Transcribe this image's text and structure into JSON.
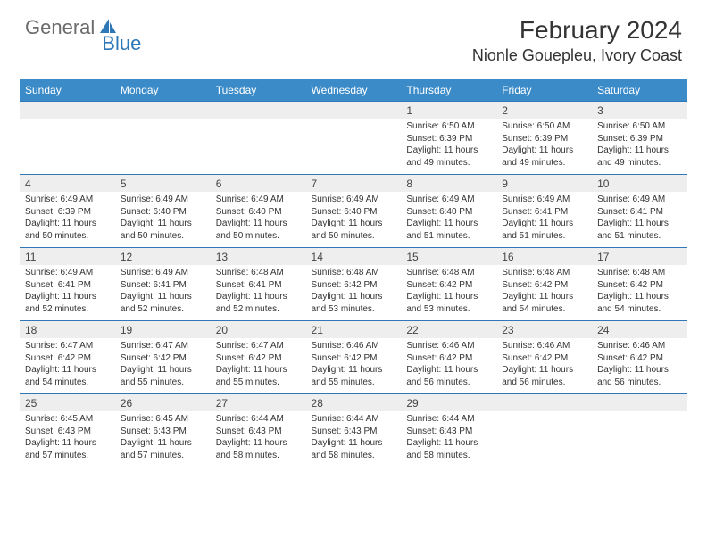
{
  "brand": {
    "general": "General",
    "blue": "Blue"
  },
  "title": {
    "month": "February 2024",
    "location": "Nionle Gouepleu, Ivory Coast"
  },
  "colors": {
    "header_bg": "#3b8bc8",
    "header_text": "#ffffff",
    "daynum_bg": "#eeeeee",
    "border": "#2f78b7",
    "body_text": "#333333",
    "logo_gray": "#6b6b6b",
    "logo_blue": "#2f78b7"
  },
  "typography": {
    "month_title_fontsize": 28,
    "location_fontsize": 18,
    "dayhead_fontsize": 12,
    "daynum_fontsize": 12,
    "cell_fontsize": 10
  },
  "dayheads": [
    "Sunday",
    "Monday",
    "Tuesday",
    "Wednesday",
    "Thursday",
    "Friday",
    "Saturday"
  ],
  "weeks": [
    {
      "nums": [
        "",
        "",
        "",
        "",
        "1",
        "2",
        "3"
      ],
      "cells": [
        null,
        null,
        null,
        null,
        {
          "sunrise": "6:50 AM",
          "sunset": "6:39 PM",
          "daylight": "11 hours and 49 minutes."
        },
        {
          "sunrise": "6:50 AM",
          "sunset": "6:39 PM",
          "daylight": "11 hours and 49 minutes."
        },
        {
          "sunrise": "6:50 AM",
          "sunset": "6:39 PM",
          "daylight": "11 hours and 49 minutes."
        }
      ]
    },
    {
      "nums": [
        "4",
        "5",
        "6",
        "7",
        "8",
        "9",
        "10"
      ],
      "cells": [
        {
          "sunrise": "6:49 AM",
          "sunset": "6:39 PM",
          "daylight": "11 hours and 50 minutes."
        },
        {
          "sunrise": "6:49 AM",
          "sunset": "6:40 PM",
          "daylight": "11 hours and 50 minutes."
        },
        {
          "sunrise": "6:49 AM",
          "sunset": "6:40 PM",
          "daylight": "11 hours and 50 minutes."
        },
        {
          "sunrise": "6:49 AM",
          "sunset": "6:40 PM",
          "daylight": "11 hours and 50 minutes."
        },
        {
          "sunrise": "6:49 AM",
          "sunset": "6:40 PM",
          "daylight": "11 hours and 51 minutes."
        },
        {
          "sunrise": "6:49 AM",
          "sunset": "6:41 PM",
          "daylight": "11 hours and 51 minutes."
        },
        {
          "sunrise": "6:49 AM",
          "sunset": "6:41 PM",
          "daylight": "11 hours and 51 minutes."
        }
      ]
    },
    {
      "nums": [
        "11",
        "12",
        "13",
        "14",
        "15",
        "16",
        "17"
      ],
      "cells": [
        {
          "sunrise": "6:49 AM",
          "sunset": "6:41 PM",
          "daylight": "11 hours and 52 minutes."
        },
        {
          "sunrise": "6:49 AM",
          "sunset": "6:41 PM",
          "daylight": "11 hours and 52 minutes."
        },
        {
          "sunrise": "6:48 AM",
          "sunset": "6:41 PM",
          "daylight": "11 hours and 52 minutes."
        },
        {
          "sunrise": "6:48 AM",
          "sunset": "6:42 PM",
          "daylight": "11 hours and 53 minutes."
        },
        {
          "sunrise": "6:48 AM",
          "sunset": "6:42 PM",
          "daylight": "11 hours and 53 minutes."
        },
        {
          "sunrise": "6:48 AM",
          "sunset": "6:42 PM",
          "daylight": "11 hours and 54 minutes."
        },
        {
          "sunrise": "6:48 AM",
          "sunset": "6:42 PM",
          "daylight": "11 hours and 54 minutes."
        }
      ]
    },
    {
      "nums": [
        "18",
        "19",
        "20",
        "21",
        "22",
        "23",
        "24"
      ],
      "cells": [
        {
          "sunrise": "6:47 AM",
          "sunset": "6:42 PM",
          "daylight": "11 hours and 54 minutes."
        },
        {
          "sunrise": "6:47 AM",
          "sunset": "6:42 PM",
          "daylight": "11 hours and 55 minutes."
        },
        {
          "sunrise": "6:47 AM",
          "sunset": "6:42 PM",
          "daylight": "11 hours and 55 minutes."
        },
        {
          "sunrise": "6:46 AM",
          "sunset": "6:42 PM",
          "daylight": "11 hours and 55 minutes."
        },
        {
          "sunrise": "6:46 AM",
          "sunset": "6:42 PM",
          "daylight": "11 hours and 56 minutes."
        },
        {
          "sunrise": "6:46 AM",
          "sunset": "6:42 PM",
          "daylight": "11 hours and 56 minutes."
        },
        {
          "sunrise": "6:46 AM",
          "sunset": "6:42 PM",
          "daylight": "11 hours and 56 minutes."
        }
      ]
    },
    {
      "nums": [
        "25",
        "26",
        "27",
        "28",
        "29",
        "",
        ""
      ],
      "cells": [
        {
          "sunrise": "6:45 AM",
          "sunset": "6:43 PM",
          "daylight": "11 hours and 57 minutes."
        },
        {
          "sunrise": "6:45 AM",
          "sunset": "6:43 PM",
          "daylight": "11 hours and 57 minutes."
        },
        {
          "sunrise": "6:44 AM",
          "sunset": "6:43 PM",
          "daylight": "11 hours and 58 minutes."
        },
        {
          "sunrise": "6:44 AM",
          "sunset": "6:43 PM",
          "daylight": "11 hours and 58 minutes."
        },
        {
          "sunrise": "6:44 AM",
          "sunset": "6:43 PM",
          "daylight": "11 hours and 58 minutes."
        },
        null,
        null
      ]
    }
  ],
  "labels": {
    "sunrise": "Sunrise:",
    "sunset": "Sunset:",
    "daylight": "Daylight:"
  }
}
